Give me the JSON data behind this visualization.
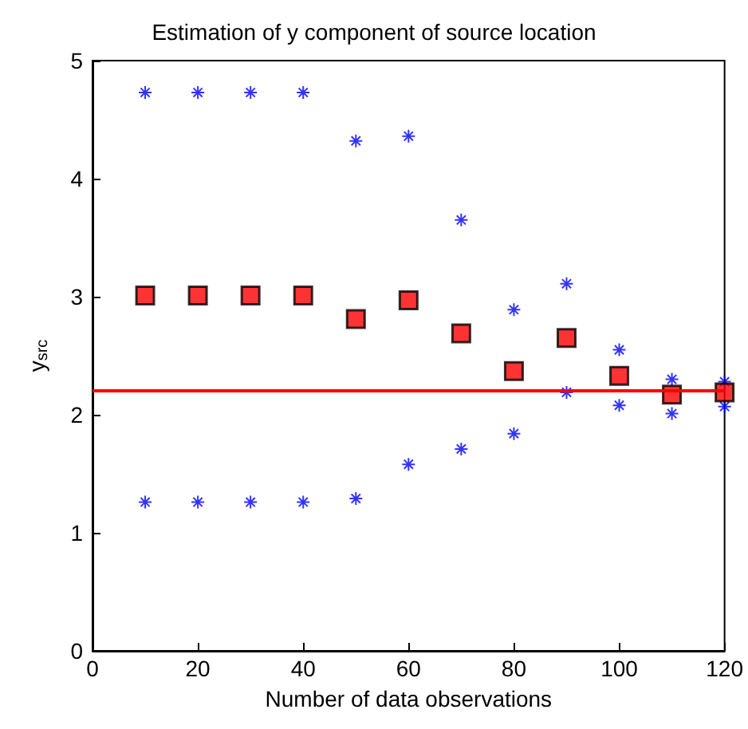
{
  "chart_data": {
    "type": "scatter",
    "title": "Estimation of y component of source location",
    "xlabel": "Number of data observations",
    "ylabel": "y$_{src}$",
    "x": [
      10,
      20,
      30,
      40,
      50,
      60,
      70,
      80,
      90,
      100,
      110,
      120
    ],
    "series": [
      {
        "color": "#0000ff",
        "marker": "cross",
        "values": [
          4.73,
          4.73,
          4.73,
          4.73,
          4.32,
          4.36,
          3.65,
          2.89,
          3.11,
          2.55,
          2.3,
          2.28
        ]
      },
      {
        "color": "#0000ff",
        "marker": "cross",
        "values": [
          1.26,
          1.26,
          1.26,
          1.26,
          1.29,
          1.58,
          1.71,
          1.84,
          2.19,
          2.08,
          2.01,
          2.07
        ]
      },
      {
        "color": "#ff0000",
        "marker": "square",
        "values": [
          3.01,
          3.01,
          3.01,
          3.01,
          2.81,
          2.97,
          2.69,
          2.37,
          2.65,
          2.33,
          2.17,
          2.19
        ]
      }
    ],
    "xlim": [
      0,
      120
    ],
    "xticks": [
      0,
      20,
      40,
      60,
      80,
      100,
      120
    ],
    "ylim": [
      0,
      5
    ],
    "yticks": [
      0,
      1,
      2,
      3,
      4,
      5
    ],
    "ref_lines": [
      {
        "axis": "y",
        "value": 2.21,
        "color": "#ff0000",
        "line_style": "solid"
      }
    ],
    "grid": false
  }
}
